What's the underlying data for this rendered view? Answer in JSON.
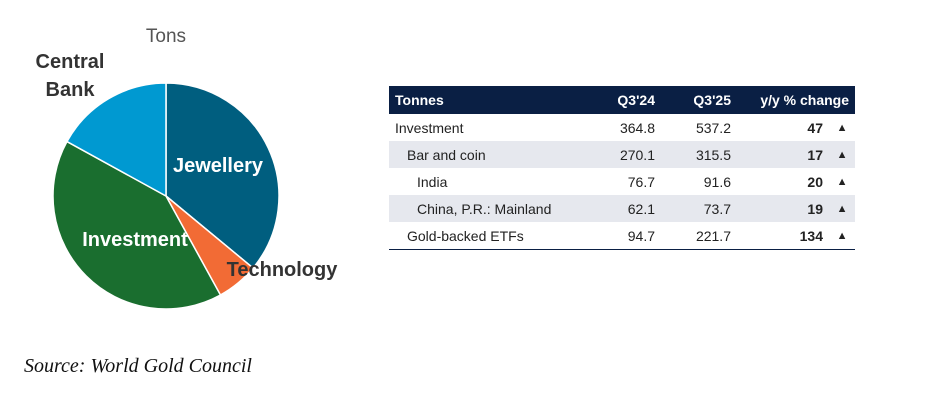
{
  "chart_data": [
    {
      "type": "pie",
      "title": "Tons",
      "slices": [
        {
          "label": "Jewellery",
          "value": 36,
          "color": "#005e7f"
        },
        {
          "label": "Technology",
          "value": 6,
          "color": "#f26b35"
        },
        {
          "label": "Investment",
          "value": 41,
          "color": "#1a6e2f"
        },
        {
          "label": "Central Bank",
          "value": 17,
          "color": "#0099d1"
        }
      ]
    },
    {
      "type": "table",
      "columns": [
        "Tonnes",
        "Q3'24",
        "Q3'25",
        "y/y % change",
        ""
      ],
      "rows": [
        {
          "label": "Investment",
          "q3_24": "364.8",
          "q3_25": "537.2",
          "change": "47",
          "arrow": "▲",
          "indent": 0,
          "shaded": false
        },
        {
          "label": "Bar and coin",
          "q3_24": "270.1",
          "q3_25": "315.5",
          "change": "17",
          "arrow": "▲",
          "indent": 1,
          "shaded": true
        },
        {
          "label": "India",
          "q3_24": "76.7",
          "q3_25": "91.6",
          "change": "20",
          "arrow": "▲",
          "indent": 2,
          "shaded": false
        },
        {
          "label": "China, P.R.: Mainland",
          "q3_24": "62.1",
          "q3_25": "73.7",
          "change": "19",
          "arrow": "▲",
          "indent": 2,
          "shaded": true
        },
        {
          "label": "Gold-backed ETFs",
          "q3_24": "94.7",
          "q3_25": "221.7",
          "change": "134",
          "arrow": "▲",
          "indent": 1,
          "shaded": false
        }
      ]
    }
  ],
  "source": "Source: World Gold Council"
}
